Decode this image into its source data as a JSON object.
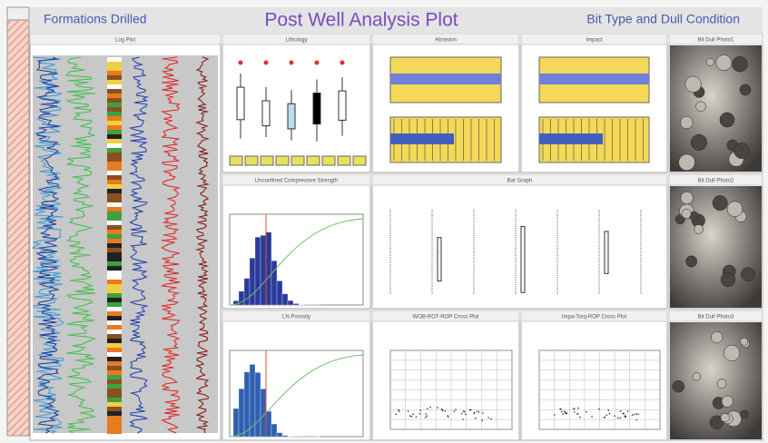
{
  "header": {
    "left": "Formations Drilled",
    "title": "Post Well Analysis Plot",
    "right": "Bit Type and Dull Condition"
  },
  "panels": [
    {
      "title": "Log Plot"
    },
    {
      "title": "Lithology"
    },
    {
      "title": "Abrasion"
    },
    {
      "title": "Impact"
    },
    {
      "title": "Bit Dull Photo1"
    },
    {
      "title": "Unconfined Compressive Strength"
    },
    {
      "title": "Bar Graph"
    },
    {
      "title": "Bit Dull Photo2"
    },
    {
      "title": "LN Porosity"
    },
    {
      "title": "WOB-ROT-ROP Cross Plot"
    },
    {
      "title": "Impa-Torq-ROP Cross Plot"
    },
    {
      "title": "Bit Dull Photo3"
    }
  ]
}
